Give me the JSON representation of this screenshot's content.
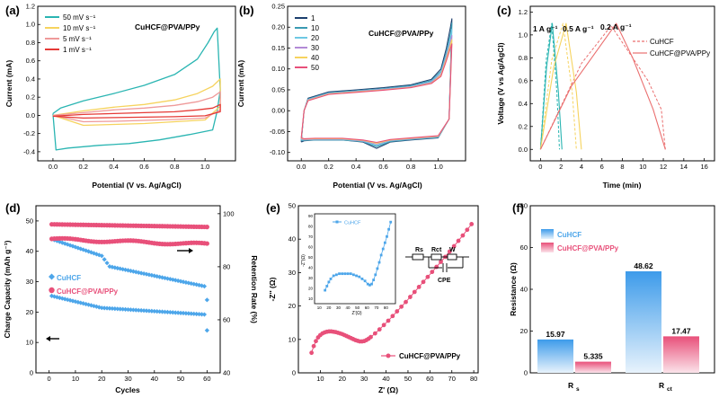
{
  "colors": {
    "teal": "#2ab5b2",
    "yellow": "#f6d35e",
    "pink": "#ef9a9a",
    "red": "#e53935",
    "navy": "#1c3f6e",
    "cyan": "#3a9ab2",
    "lightblue": "#6ec8e3",
    "violet": "#b28ad6",
    "blue": "#4da6ea",
    "magenta": "#e8507a",
    "salmon": "#ea6f6f"
  },
  "chart_data": [
    {
      "id": "a",
      "panel_label": "(a)",
      "type": "line",
      "title": "CuHCF@PVA/PPy",
      "xlabel": "Potential (V vs. Ag/AgCl)",
      "ylabel": "Current (mA)",
      "xlim": [
        -0.1,
        1.2
      ],
      "ylim": [
        -0.5,
        1.2
      ],
      "xticks": [
        "0.0",
        "0.2",
        "0.4",
        "0.6",
        "0.8",
        "1.0"
      ],
      "yticks": [
        "-0.4",
        "-0.2",
        "0.0",
        "0.2",
        "0.4",
        "0.6",
        "0.8",
        "1.0",
        "1.2"
      ],
      "series": [
        {
          "name": "50 mV s⁻¹",
          "color": "teal",
          "x": [
            0,
            0.05,
            0.2,
            0.4,
            0.6,
            0.8,
            0.95,
            1.02,
            1.06,
            1.08,
            1.1,
            1.08,
            1.05,
            0.9,
            0.7,
            0.5,
            0.3,
            0.1,
            0.02,
            0
          ],
          "y": [
            0.02,
            0.08,
            0.16,
            0.24,
            0.33,
            0.45,
            0.62,
            0.8,
            0.92,
            0.96,
            0.28,
            0.05,
            -0.16,
            -0.21,
            -0.27,
            -0.31,
            -0.33,
            -0.36,
            -0.38,
            0.02
          ]
        },
        {
          "name": "10 mV s⁻¹",
          "color": "yellow",
          "x": [
            0,
            0.2,
            0.4,
            0.6,
            0.8,
            0.95,
            1.05,
            1.1,
            1.1,
            1.0,
            0.8,
            0.6,
            0.4,
            0.2,
            0
          ],
          "y": [
            0.0,
            0.05,
            0.09,
            0.12,
            0.17,
            0.24,
            0.32,
            0.4,
            0.1,
            -0.05,
            -0.07,
            -0.09,
            -0.1,
            -0.11,
            0.0
          ]
        },
        {
          "name": "5 mV s⁻¹",
          "color": "pink",
          "x": [
            0,
            0.2,
            0.4,
            0.6,
            0.8,
            0.95,
            1.05,
            1.1,
            1.1,
            1.0,
            0.8,
            0.6,
            0.4,
            0.2,
            0
          ],
          "y": [
            0.0,
            0.03,
            0.06,
            0.08,
            0.11,
            0.15,
            0.2,
            0.26,
            0.06,
            -0.03,
            -0.045,
            -0.055,
            -0.065,
            -0.07,
            0.0
          ]
        },
        {
          "name": "1 mV s⁻¹",
          "color": "red",
          "x": [
            0,
            0.2,
            0.4,
            0.6,
            0.8,
            0.95,
            1.05,
            1.1,
            1.1,
            1.0,
            0.8,
            0.6,
            0.4,
            0.2,
            0
          ],
          "y": [
            -0.01,
            0.01,
            0.02,
            0.03,
            0.04,
            0.06,
            0.08,
            0.12,
            0.04,
            -0.005,
            -0.015,
            -0.02,
            -0.025,
            -0.03,
            -0.01
          ]
        }
      ]
    },
    {
      "id": "b",
      "panel_label": "(b)",
      "type": "line",
      "title": "CuHCF@PVA/PPy",
      "xlabel": "Potential (V vs. Ag/AgCl)",
      "ylabel": "Current (mA)",
      "xlim": [
        -0.1,
        1.2
      ],
      "ylim": [
        -0.12,
        0.25
      ],
      "xticks": [
        "0.0",
        "0.2",
        "0.4",
        "0.6",
        "0.8",
        "1.0"
      ],
      "yticks": [
        "-0.10",
        "-0.05",
        "0.00",
        "0.05",
        "0.10",
        "0.15",
        "0.20",
        "0.25"
      ],
      "series": [
        {
          "name": "1",
          "color": "navy",
          "x": [
            0,
            0.02,
            0.05,
            0.2,
            0.4,
            0.6,
            0.8,
            0.95,
            1.02,
            1.06,
            1.09,
            1.1,
            1.08,
            1.0,
            0.8,
            0.65,
            0.55,
            0.45,
            0.3,
            0.1,
            0.02,
            0
          ],
          "y": [
            -0.075,
            0.0,
            0.03,
            0.045,
            0.05,
            0.055,
            0.062,
            0.075,
            0.1,
            0.15,
            0.2,
            0.22,
            -0.02,
            -0.065,
            -0.07,
            -0.075,
            -0.09,
            -0.075,
            -0.07,
            -0.07,
            -0.072,
            -0.075
          ]
        },
        {
          "name": "10",
          "color": "cyan",
          "x": [
            0,
            0.02,
            0.05,
            0.2,
            0.4,
            0.6,
            0.8,
            0.95,
            1.02,
            1.06,
            1.09,
            1.1,
            1.08,
            1.0,
            0.8,
            0.65,
            0.55,
            0.45,
            0.3,
            0.1,
            0.02,
            0
          ],
          "y": [
            -0.072,
            0.0,
            0.028,
            0.043,
            0.048,
            0.053,
            0.06,
            0.072,
            0.095,
            0.14,
            0.185,
            0.21,
            -0.02,
            -0.064,
            -0.069,
            -0.074,
            -0.086,
            -0.074,
            -0.07,
            -0.07,
            -0.071,
            -0.072
          ]
        },
        {
          "name": "20",
          "color": "lightblue",
          "x": [
            0,
            0.02,
            0.05,
            0.2,
            0.4,
            0.6,
            0.8,
            0.95,
            1.02,
            1.06,
            1.09,
            1.1,
            1.08,
            1.0,
            0.8,
            0.65,
            0.55,
            0.45,
            0.3,
            0.1,
            0.02,
            0
          ],
          "y": [
            -0.07,
            0.0,
            0.027,
            0.042,
            0.047,
            0.052,
            0.058,
            0.07,
            0.092,
            0.135,
            0.175,
            0.195,
            -0.02,
            -0.063,
            -0.068,
            -0.072,
            -0.083,
            -0.073,
            -0.069,
            -0.069,
            -0.07,
            -0.07
          ]
        },
        {
          "name": "30",
          "color": "violet",
          "x": [
            0,
            0.02,
            0.05,
            0.2,
            0.4,
            0.6,
            0.8,
            0.95,
            1.02,
            1.06,
            1.09,
            1.1,
            1.08,
            1.0,
            0.8,
            0.65,
            0.55,
            0.45,
            0.3,
            0.1,
            0.02,
            0
          ],
          "y": [
            -0.068,
            0.0,
            0.026,
            0.041,
            0.046,
            0.051,
            0.057,
            0.068,
            0.088,
            0.13,
            0.165,
            0.18,
            -0.02,
            -0.062,
            -0.067,
            -0.071,
            -0.08,
            -0.072,
            -0.068,
            -0.068,
            -0.069,
            -0.068
          ]
        },
        {
          "name": "40",
          "color": "yellow",
          "x": [
            0,
            0.02,
            0.05,
            0.2,
            0.4,
            0.6,
            0.8,
            0.95,
            1.02,
            1.06,
            1.09,
            1.1,
            1.08,
            1.0,
            0.8,
            0.65,
            0.55,
            0.45,
            0.3,
            0.1,
            0.02,
            0
          ],
          "y": [
            -0.066,
            0.0,
            0.025,
            0.04,
            0.045,
            0.05,
            0.056,
            0.066,
            0.085,
            0.125,
            0.158,
            0.17,
            -0.02,
            -0.061,
            -0.066,
            -0.07,
            -0.078,
            -0.071,
            -0.067,
            -0.067,
            -0.068,
            -0.066
          ]
        },
        {
          "name": "50",
          "color": "magenta",
          "x": [
            0,
            0.02,
            0.05,
            0.2,
            0.4,
            0.6,
            0.8,
            0.95,
            1.02,
            1.06,
            1.09,
            1.1,
            1.08,
            1.0,
            0.8,
            0.65,
            0.55,
            0.45,
            0.3,
            0.1,
            0.02,
            0
          ],
          "y": [
            -0.065,
            0.0,
            0.024,
            0.039,
            0.044,
            0.049,
            0.055,
            0.065,
            0.082,
            0.12,
            0.15,
            0.16,
            -0.02,
            -0.06,
            -0.065,
            -0.069,
            -0.076,
            -0.07,
            -0.066,
            -0.066,
            -0.067,
            -0.065
          ]
        }
      ]
    },
    {
      "id": "c",
      "panel_label": "(c)",
      "type": "line",
      "xlabel": "Time (min)",
      "ylabel": "Voltage (V vs Ag/AgCl)",
      "xlim": [
        -1,
        17
      ],
      "ylim": [
        -0.1,
        1.25
      ],
      "xticks": [
        "0",
        "2",
        "4",
        "6",
        "8",
        "10",
        "12",
        "14",
        "16"
      ],
      "yticks": [
        "0.0",
        "0.2",
        "0.4",
        "0.6",
        "0.8",
        "1.0",
        "1.2"
      ],
      "annotations": [
        "1 A g⁻¹",
        "0.5 A g⁻¹",
        "0.2 A g⁻¹"
      ],
      "series": [
        {
          "name": "CuHCF",
          "color": "salmon",
          "dashed": true,
          "x": [
            0,
            0.55,
            1.1,
            1.6,
            1.85,
            0,
            1.1,
            2.2,
            3.1,
            3.5,
            0,
            4,
            6.9,
            9,
            10.5,
            11.8,
            12.2
          ],
          "y": [
            0,
            0.78,
            1.1,
            0.5,
            0,
            0,
            0.78,
            1.1,
            0.5,
            0,
            0,
            0.75,
            1.08,
            0.8,
            0.6,
            0.35,
            0
          ],
          "breaks": [
            5,
            10
          ]
        },
        {
          "name": "CuHCF@PVA/PPy",
          "color": "salmon",
          "dashed": false,
          "x": [
            0,
            0.6,
            1.15,
            1.75,
            2.1,
            0,
            1.3,
            2.5,
            3.5,
            4,
            0,
            3,
            7.4,
            9,
            11,
            12.2
          ],
          "y": [
            0,
            0.72,
            1.1,
            0.5,
            0,
            0,
            0.72,
            1.1,
            0.5,
            0,
            0,
            0.55,
            1.1,
            0.8,
            0.35,
            0
          ],
          "breaks": [
            5,
            10
          ]
        }
      ],
      "series_colors": {
        "1": "teal",
        "0.5": "yellow",
        "0.2": "salmon"
      }
    },
    {
      "id": "d",
      "panel_label": "(d)",
      "type": "scatter",
      "xlabel": "Cycles",
      "ylabel": "Charge Capacity (mAh g⁻¹)",
      "y2label": "Retention Rate (%)",
      "xlim": [
        -5,
        65
      ],
      "ylim": [
        0,
        55
      ],
      "y2lim": [
        40,
        103
      ],
      "xticks": [
        "0",
        "10",
        "20",
        "30",
        "40",
        "50",
        "60"
      ],
      "yticks": [
        "0",
        "10",
        "20",
        "30",
        "40",
        "50"
      ],
      "y2ticks": [
        "40",
        "60",
        "80",
        "100"
      ],
      "series": [
        {
          "name": "CuHCF",
          "color": "blue",
          "marker": "diamond",
          "capacity_start": 44,
          "capacity_mid": 35,
          "capacity_end": 28.5,
          "capacity_drop": 24,
          "retention_start": 69,
          "retention_end": 62,
          "retention_drop": 56
        },
        {
          "name": "CuHCF@PVA/PPy",
          "color": "magenta",
          "marker": "circle",
          "capacity_start": 44,
          "capacity_end": 42.3,
          "retention_start": 96,
          "retention_end": 95
        }
      ]
    },
    {
      "id": "e",
      "panel_label": "(e)",
      "type": "scatter",
      "xlabel": "Z' (Ω)",
      "ylabel": "-Z'' (Ω)",
      "xlim": [
        0,
        82
      ],
      "ylim": [
        0,
        50
      ],
      "xticks": [
        "10",
        "20",
        "30",
        "40",
        "50",
        "60",
        "70",
        "80"
      ],
      "yticks": [
        "0",
        "10",
        "20",
        "30",
        "40",
        "50"
      ],
      "series": [
        {
          "name": "CuHCF@PVA/PPy",
          "color": "magenta",
          "x": [
            6,
            7,
            8,
            9,
            10,
            11,
            12,
            13,
            14,
            15,
            16,
            17,
            18,
            19,
            20,
            21,
            22,
            23,
            24,
            25,
            26,
            27,
            28,
            29,
            30,
            31,
            32,
            33,
            35,
            37,
            39,
            41,
            43,
            45,
            47,
            49,
            51,
            53,
            55,
            57,
            59,
            61,
            63,
            65,
            67,
            69,
            71,
            73,
            75,
            77,
            79
          ],
          "y": [
            6,
            8,
            9.5,
            10.6,
            11.3,
            11.8,
            12.1,
            12.3,
            12.4,
            12.4,
            12.3,
            12.2,
            12,
            11.8,
            11.6,
            11.3,
            11,
            10.7,
            10.4,
            10.1,
            9.8,
            9.6,
            9.4,
            9.4,
            9.5,
            9.8,
            10.2,
            10.7,
            11.8,
            13,
            14.3,
            15.6,
            17,
            18.4,
            19.8,
            21.2,
            22.7,
            24.2,
            25.7,
            27.2,
            28.7,
            30.2,
            31.7,
            33.2,
            34.7,
            36.3,
            37.9,
            39.5,
            41.1,
            42.8,
            44.5
          ]
        }
      ],
      "inset": {
        "series_name": "CuHCF",
        "xlabel": "Z'(Ω)",
        "ylabel": "-Z''(Ω)",
        "xticks": [
          "10",
          "20",
          "30",
          "40",
          "50",
          "60",
          "70",
          "80"
        ],
        "yticks": [
          "0",
          "10",
          "20",
          "30",
          "40",
          "50",
          "60",
          "70",
          "80",
          "90"
        ],
        "x": [
          16,
          18,
          20,
          22,
          25,
          28,
          31,
          34,
          37,
          40,
          43,
          46,
          49,
          52,
          55,
          58,
          61,
          63,
          65,
          67,
          69,
          71,
          73,
          75,
          77,
          79,
          81,
          83,
          85
        ],
        "y": [
          18,
          22,
          26,
          29,
          32,
          33,
          34,
          34,
          34,
          34,
          34,
          33,
          32,
          31,
          29,
          27,
          24,
          23,
          24,
          28,
          33,
          39,
          45,
          52,
          58,
          64,
          70,
          77,
          84
        ]
      },
      "circuit_labels": {
        "rs": "Rs",
        "rct": "Rct",
        "w": "W",
        "cpe": "CPE"
      }
    },
    {
      "id": "f",
      "panel_label": "(f)",
      "type": "bar",
      "ylabel": "Resistance (Ω)",
      "ylim": [
        0,
        80
      ],
      "yticks": [
        "0",
        "20",
        "40",
        "60",
        "80"
      ],
      "categories": [
        "Rs",
        "Rct"
      ],
      "category_labels": [
        {
          "main": "R",
          "sub": "s"
        },
        {
          "main": "R",
          "sub": "ct"
        }
      ],
      "series": [
        {
          "name": "CuHCF",
          "color": "blue",
          "values": [
            15.97,
            48.62
          ],
          "labels": [
            "15.97",
            "48.62"
          ]
        },
        {
          "name": "CuHCF@PVA/PPy",
          "color": "magenta",
          "values": [
            5.335,
            17.47
          ],
          "labels": [
            "5.335",
            "17.47"
          ]
        }
      ]
    }
  ]
}
